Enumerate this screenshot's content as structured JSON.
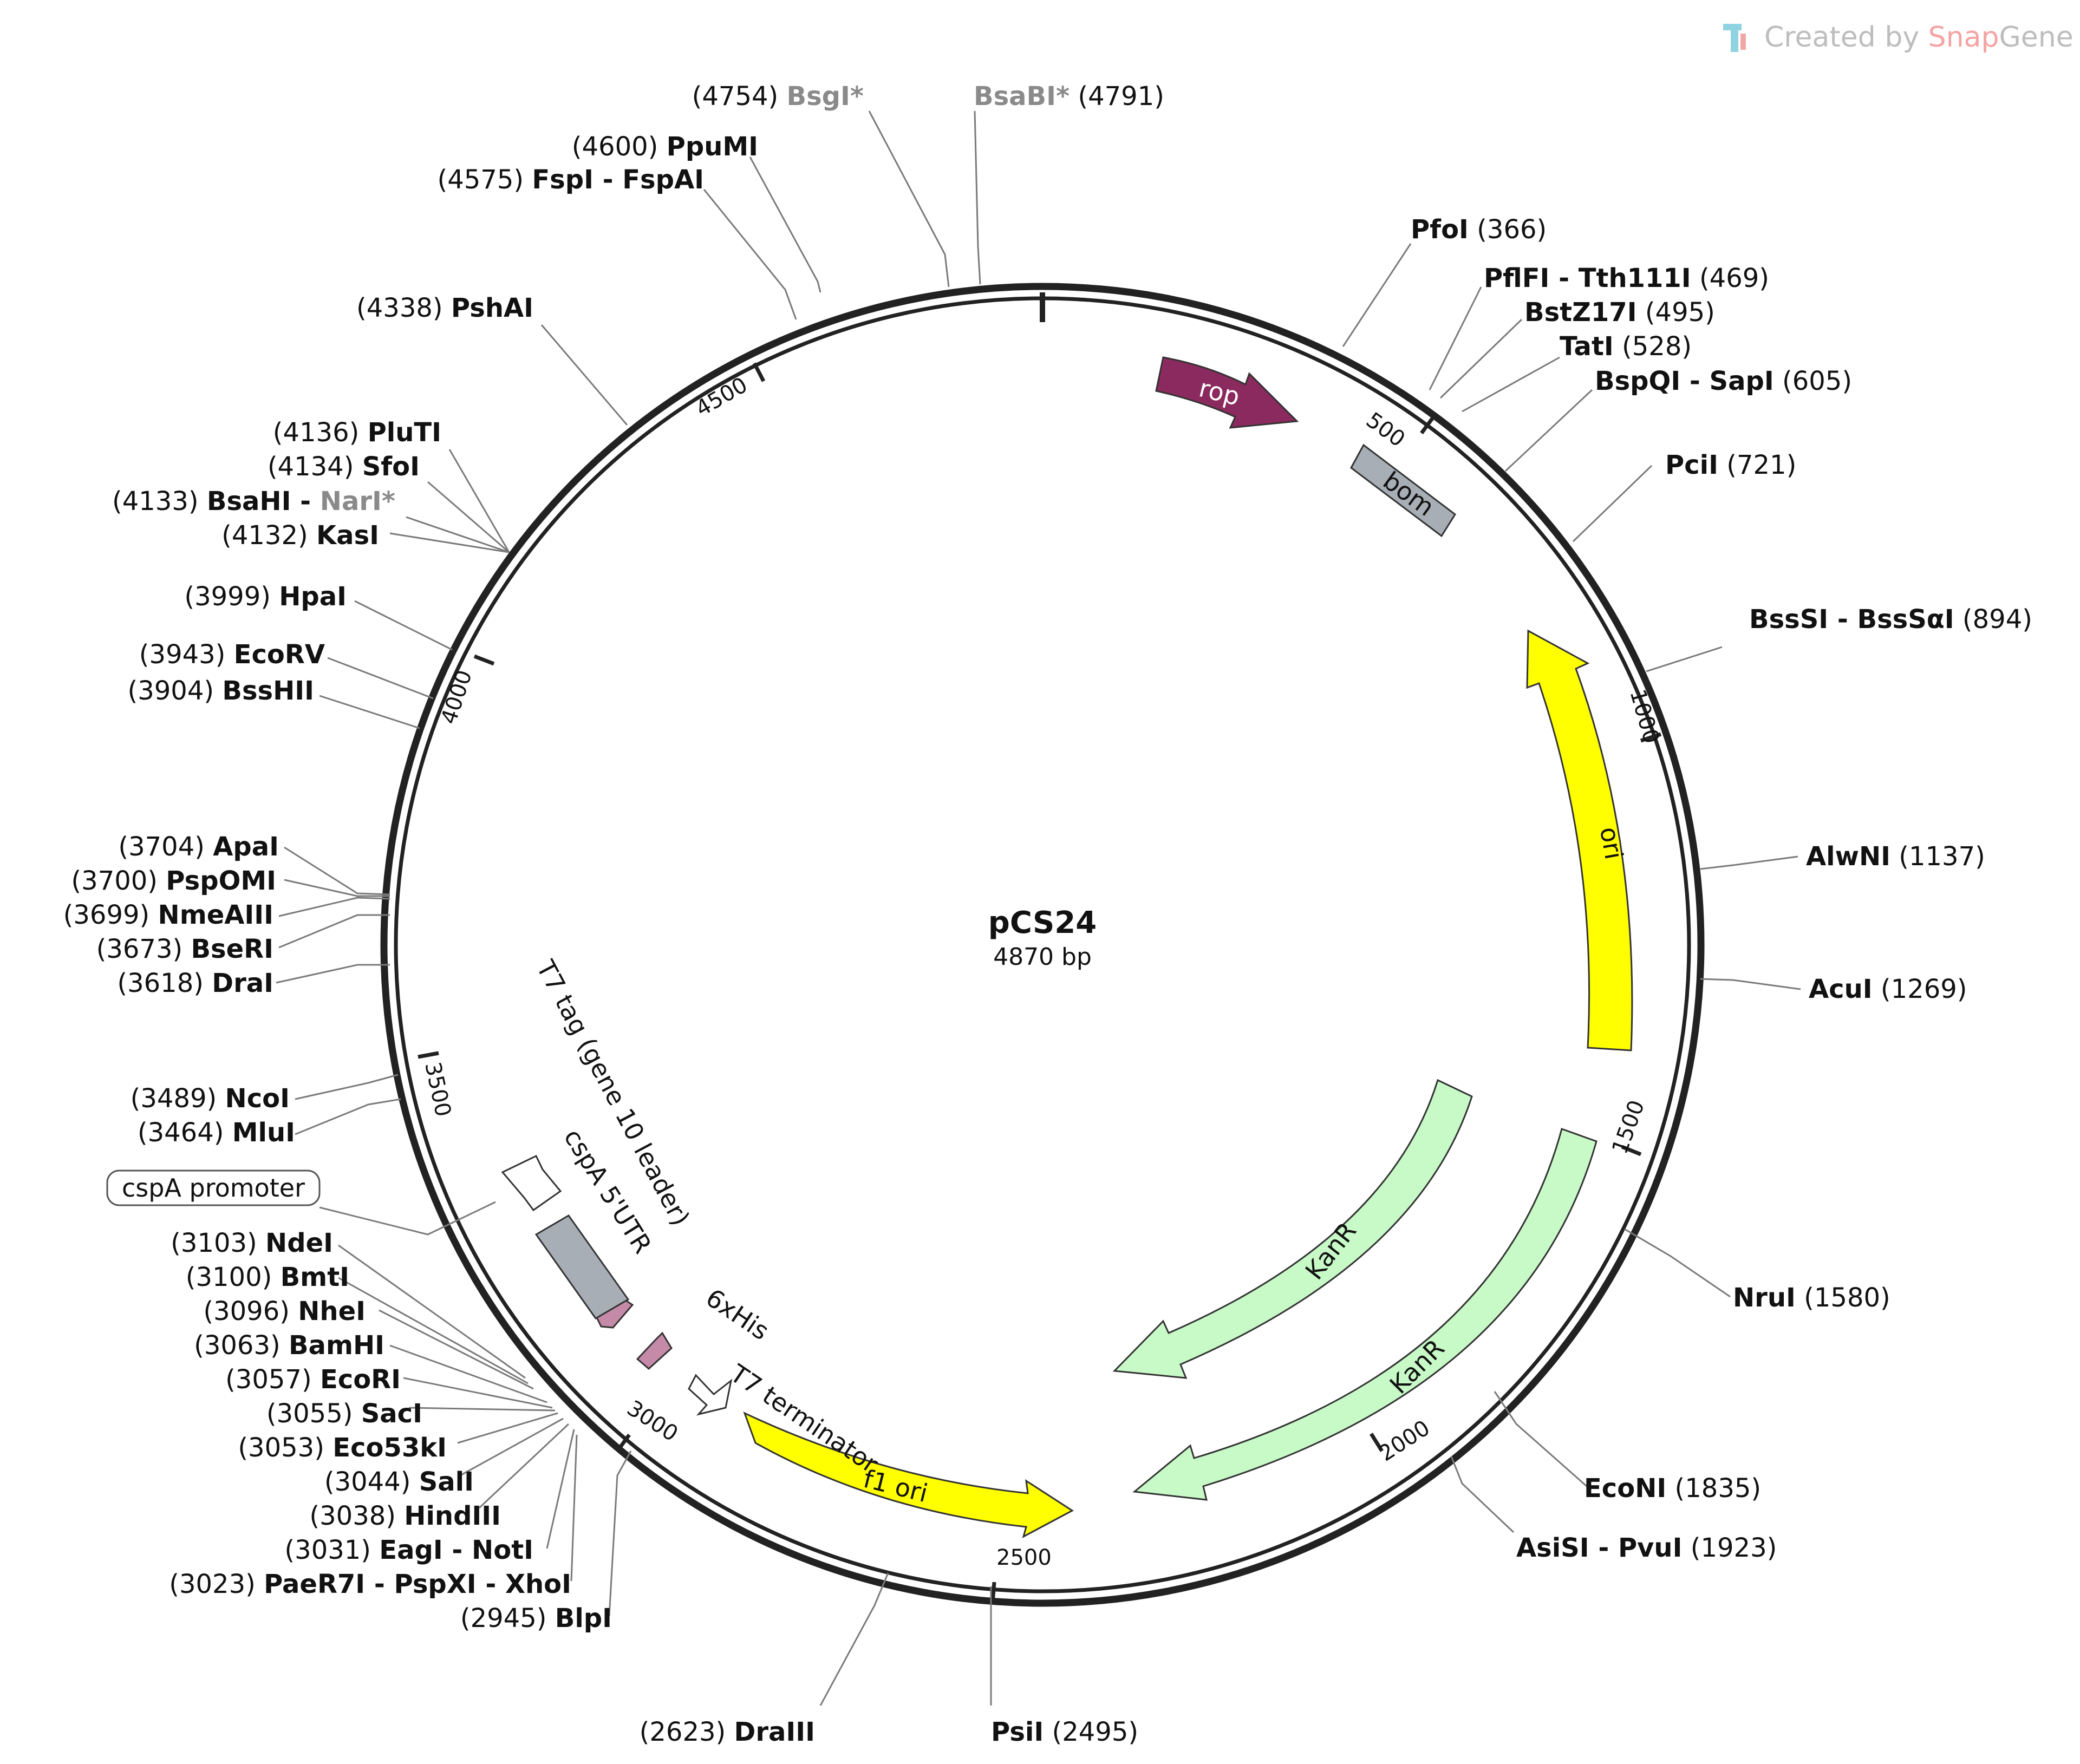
{
  "plasmid": {
    "name": "pCS24",
    "length_label": "4870 bp"
  },
  "watermark": {
    "prefix": "Created by ",
    "brand_a": "Snap",
    "brand_b": "Gene",
    "icon": "snapgene-logo-icon"
  },
  "colors": {
    "backbone": "#222222",
    "rop": "#8b2a5e",
    "bom": "#a8aeb6",
    "ori": "#ffff00",
    "kanr": "#c8fac8",
    "tag": "#c48aa8",
    "utr": "#a8aeb6",
    "greyed_enzyme": "#8a8a8a"
  },
  "ticks": [
    "500",
    "1000",
    "1500",
    "2000",
    "2500",
    "3000",
    "3500",
    "4000",
    "4500"
  ],
  "features": [
    {
      "label": "rop",
      "type": "arrow",
      "color": "rop"
    },
    {
      "label": "bom",
      "type": "box",
      "color": "bom"
    },
    {
      "label": "ori",
      "type": "arrow",
      "color": "ori"
    },
    {
      "label": "KanR",
      "type": "arrow",
      "color": "kanr"
    },
    {
      "label": "KanR",
      "type": "arrow",
      "color": "kanr"
    },
    {
      "label": "f1 ori",
      "type": "arrow",
      "color": "ori"
    },
    {
      "label": "T7 terminator",
      "type": "open-arrow"
    },
    {
      "label": "6xHis",
      "type": "small-arrow",
      "color": "tag"
    },
    {
      "label": "T7 tag (gene 10 leader)",
      "type": "small-arrow",
      "color": "tag"
    },
    {
      "label": "cspA 5'UTR",
      "type": "box",
      "color": "utr"
    },
    {
      "label": "cspA promoter",
      "type": "open-arrow"
    }
  ],
  "enzymes": [
    {
      "name": "BsgI*",
      "pos": "(4754)",
      "grey": true
    },
    {
      "name": "BsaBI*",
      "pos": "(4791)",
      "grey": true
    },
    {
      "name": "PpuMI",
      "pos": "(4600)"
    },
    {
      "name": "FspI - FspAI",
      "pos": "(4575)"
    },
    {
      "name": "PfoI",
      "pos": "(366)"
    },
    {
      "name": "PflFI - Tth111I",
      "pos": "(469)"
    },
    {
      "name": "BstZ17I",
      "pos": "(495)"
    },
    {
      "name": "TatI",
      "pos": "(528)"
    },
    {
      "name": "BspQI - SapI",
      "pos": "(605)"
    },
    {
      "name": "PciI",
      "pos": "(721)"
    },
    {
      "name": "PshAI",
      "pos": "(4338)"
    },
    {
      "name": "PluTI",
      "pos": "(4136)"
    },
    {
      "name": "SfoI",
      "pos": "(4134)"
    },
    {
      "name": "BsaHI",
      "name2": "NarI*",
      "pos": "(4133)"
    },
    {
      "name": "KasI",
      "pos": "(4132)"
    },
    {
      "name": "HpaI",
      "pos": "(3999)"
    },
    {
      "name": "EcoRV",
      "pos": "(3943)"
    },
    {
      "name": "BssHII",
      "pos": "(3904)"
    },
    {
      "name": "BssSI - BssSαI",
      "pos": "(894)"
    },
    {
      "name": "AlwNI",
      "pos": "(1137)"
    },
    {
      "name": "AcuI",
      "pos": "(1269)"
    },
    {
      "name": "ApaI",
      "pos": "(3704)"
    },
    {
      "name": "PspOMI",
      "pos": "(3700)"
    },
    {
      "name": "NmeAIII",
      "pos": "(3699)"
    },
    {
      "name": "BseRI",
      "pos": "(3673)"
    },
    {
      "name": "DraI",
      "pos": "(3618)"
    },
    {
      "name": "NcoI",
      "pos": "(3489)"
    },
    {
      "name": "MluI",
      "pos": "(3464)"
    },
    {
      "name": "NruI",
      "pos": "(1580)"
    },
    {
      "name": "NdeI",
      "pos": "(3103)"
    },
    {
      "name": "BmtI",
      "pos": "(3100)"
    },
    {
      "name": "NheI",
      "pos": "(3096)"
    },
    {
      "name": "BamHI",
      "pos": "(3063)"
    },
    {
      "name": "EcoRI",
      "pos": "(3057)"
    },
    {
      "name": "SacI",
      "pos": "(3055)"
    },
    {
      "name": "Eco53kI",
      "pos": "(3053)"
    },
    {
      "name": "SalI",
      "pos": "(3044)"
    },
    {
      "name": "HindIII",
      "pos": "(3038)"
    },
    {
      "name": "EagI - NotI",
      "pos": "(3031)"
    },
    {
      "name": "PaeR7I - PspXI - XhoI",
      "pos": "(3023)"
    },
    {
      "name": "BlpI",
      "pos": "(2945)"
    },
    {
      "name": "EcoNI",
      "pos": "(1835)"
    },
    {
      "name": "AsiSI - PvuI",
      "pos": "(1923)"
    },
    {
      "name": "DraIII",
      "pos": "(2623)"
    },
    {
      "name": "PsiI",
      "pos": "(2495)"
    }
  ]
}
